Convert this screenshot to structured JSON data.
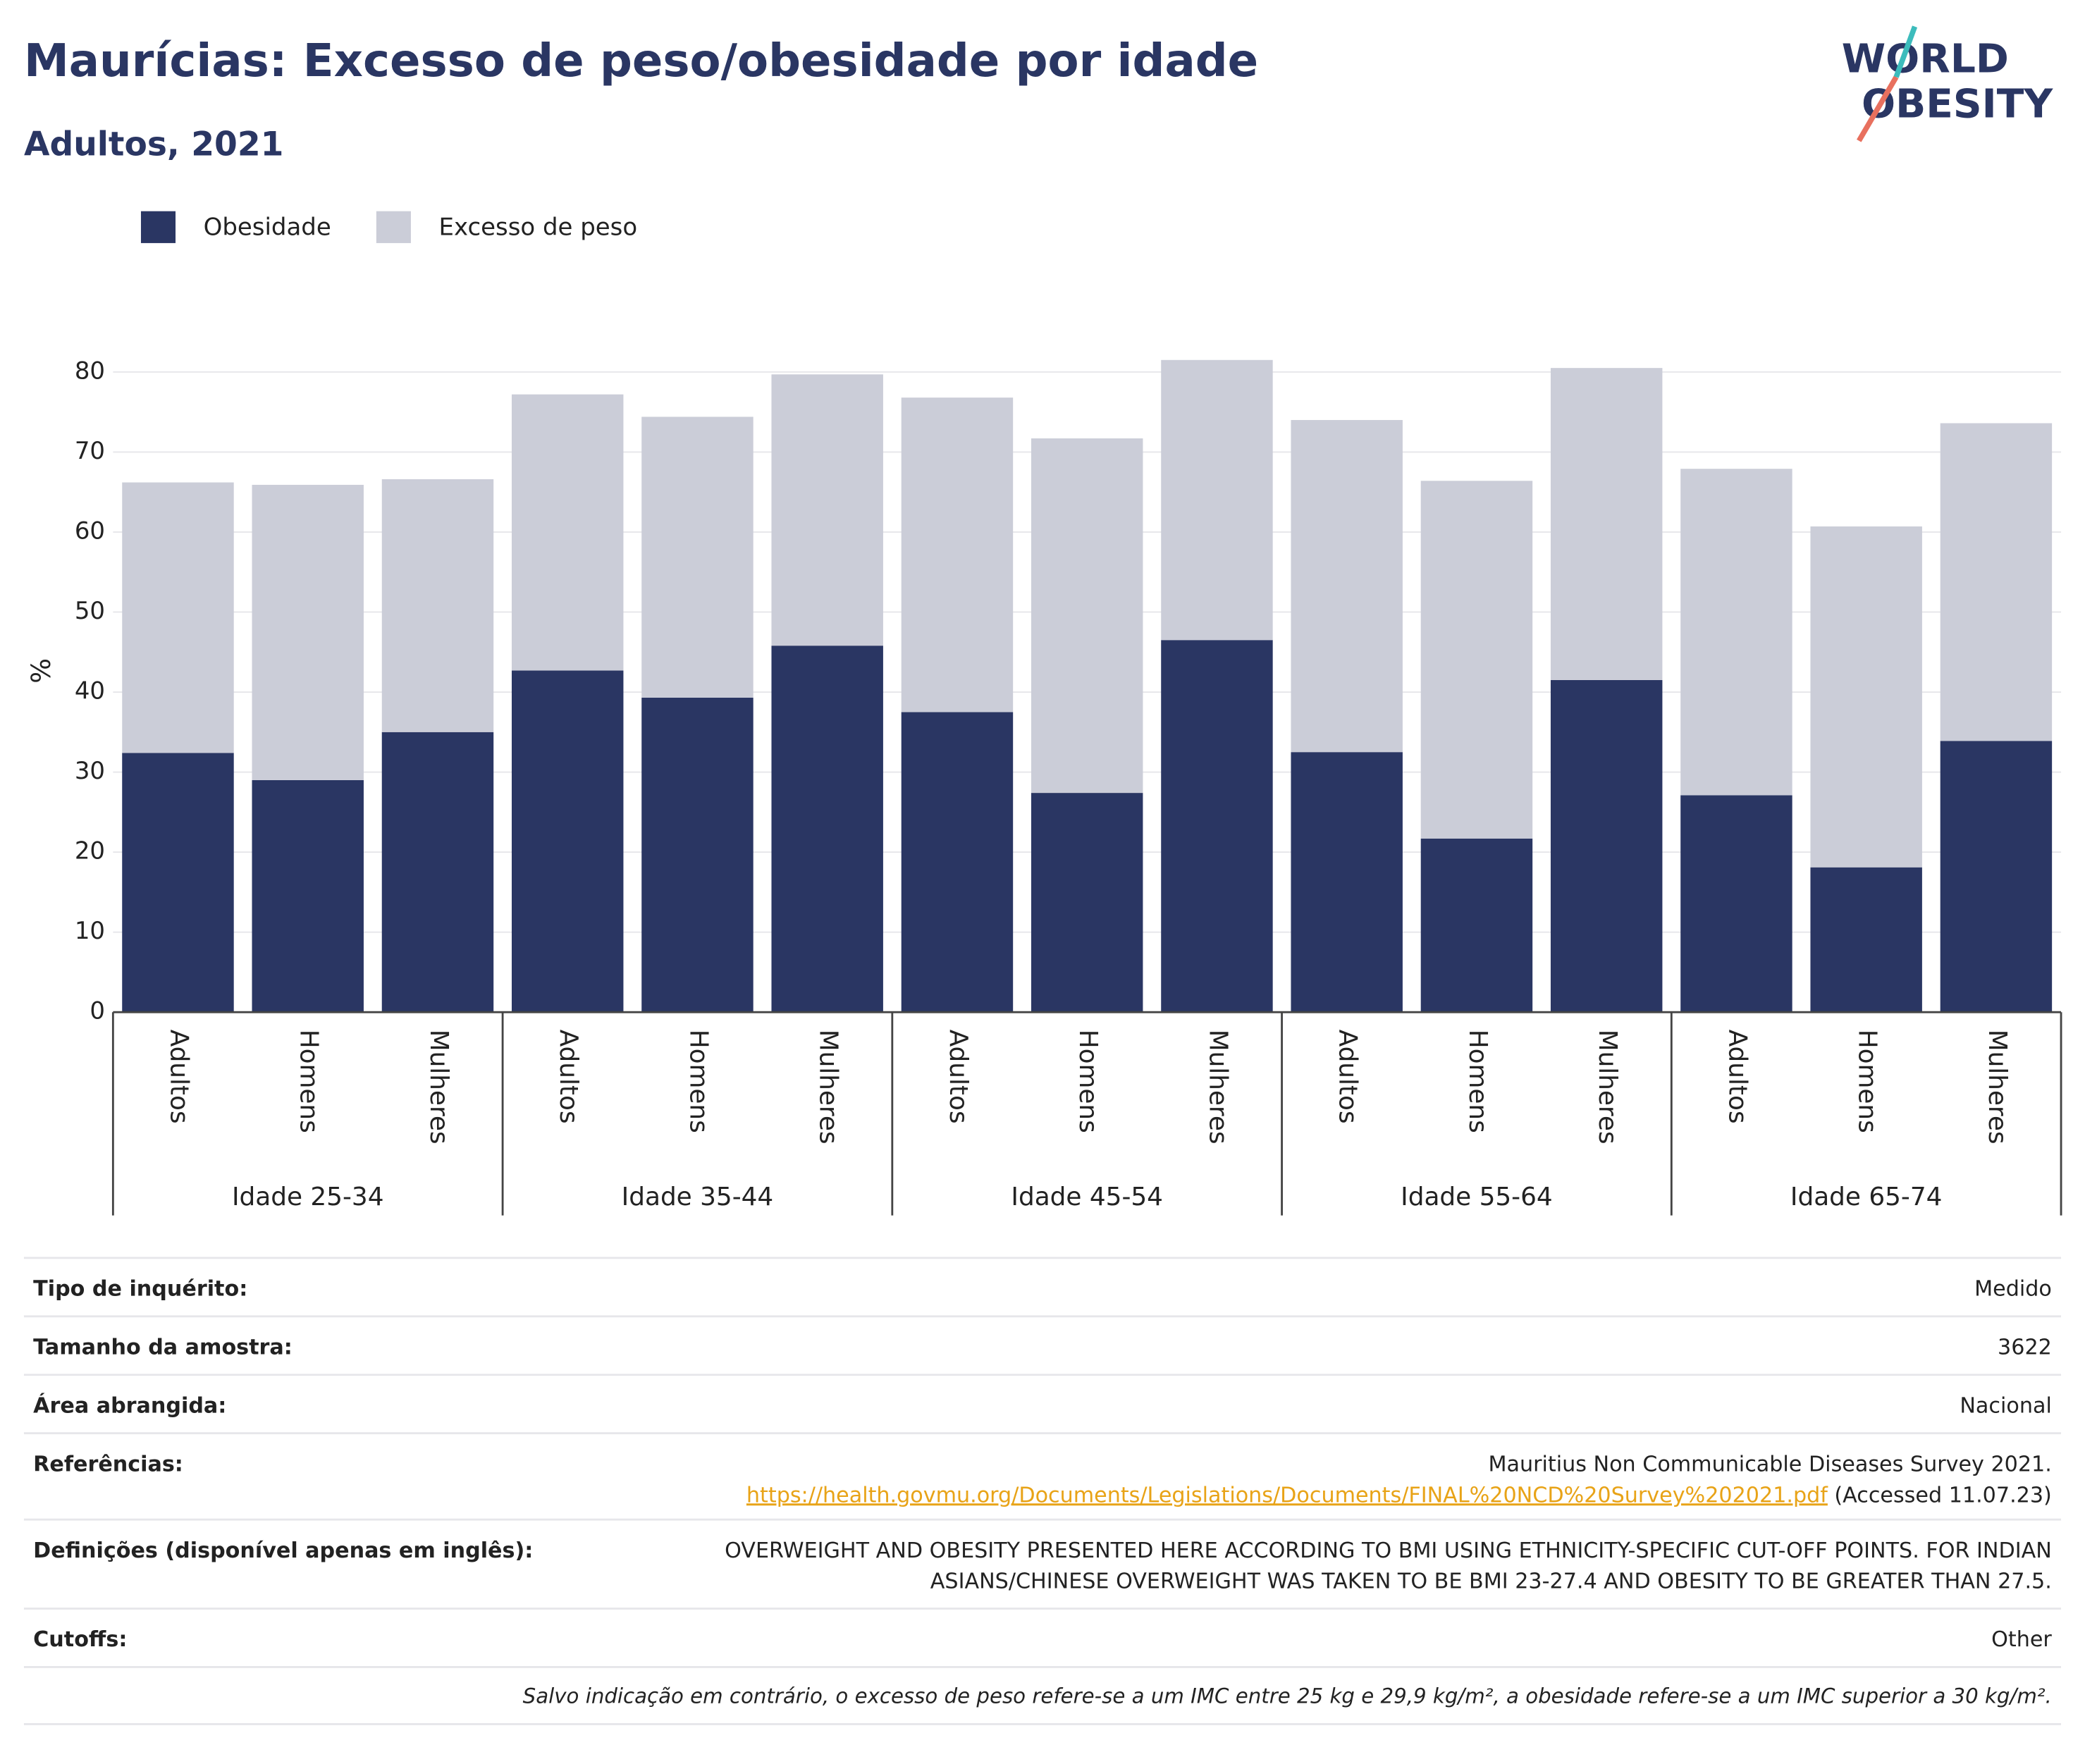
{
  "chart_data": {
    "type": "stacked_bar",
    "title": "Maurícias: Excesso de peso/obesidade por idade",
    "subtitle": "Adultos, 2021",
    "y_label": "%",
    "logo": [
      "WORLD",
      "OBESITY"
    ],
    "groups": [
      {
        "name": "Idade 25-34",
        "categories": [
          "Adultos",
          "Homens",
          "Mulheres"
        ]
      },
      {
        "name": "Idade 35-44",
        "categories": [
          "Adultos",
          "Homens",
          "Mulheres"
        ]
      },
      {
        "name": "Idade 45-54",
        "categories": [
          "Adultos",
          "Homens",
          "Mulheres"
        ]
      },
      {
        "name": "Idade 55-64",
        "categories": [
          "Adultos",
          "Homens",
          "Mulheres"
        ]
      },
      {
        "name": "Idade 65-74",
        "categories": [
          "Adultos",
          "Homens",
          "Mulheres"
        ]
      }
    ],
    "series": [
      {
        "name": "Obesidade",
        "color": "#2a3663",
        "values": [
          32.4,
          29.0,
          35.0,
          42.7,
          39.3,
          45.8,
          37.5,
          27.4,
          46.5,
          32.5,
          21.7,
          41.5,
          27.1,
          18.1,
          33.9
        ]
      },
      {
        "name": "Excesso de peso",
        "color": "#cbcdd8",
        "values": [
          33.8,
          36.9,
          31.6,
          34.5,
          35.1,
          33.9,
          39.3,
          44.3,
          35.0,
          41.5,
          44.7,
          39.0,
          40.8,
          42.6,
          39.7
        ]
      }
    ],
    "ylim": [
      0,
      82
    ],
    "yticks": [
      0,
      10,
      20,
      30,
      40,
      50,
      60,
      70,
      80
    ],
    "grid": true
  },
  "info": {
    "rows": [
      {
        "label": "Tipo de inquérito:",
        "lines": [
          "Medido"
        ]
      },
      {
        "label": "Tamanho da amostra:",
        "lines": [
          "3622"
        ]
      },
      {
        "label": "Área abrangida:",
        "lines": [
          "Nacional"
        ]
      }
    ],
    "references": {
      "label": "Referências:",
      "text": "Mauritius Non Communicable Diseases Survey 2021.",
      "url": "https://health.govmu.org/Documents/Legislations/Documents/FINAL%20NCD%20Survey%202021.pdf",
      "accessed": "(Accessed 11.07.23)"
    },
    "definitions": {
      "label": "Definições (disponível apenas em inglês):",
      "lines": [
        "OVERWEIGHT AND OBESITY PRESENTED HERE ACCORDING TO BMI USING ETHNICITY-SPECIFIC CUT-OFF POINTS. FOR INDIAN",
        "ASIANS/CHINESE OVERWEIGHT WAS TAKEN TO BE BMI 23-27.4 AND OBESITY TO BE GREATER THAN 27.5."
      ]
    },
    "cutoffs": {
      "label": "Cutoffs:",
      "lines": [
        "Other"
      ]
    },
    "footnote": "Salvo indicação em contrário, o excesso de peso refere-se a um IMC entre 25 kg e 29,9 kg/m², a obesidade refere-se a um IMC superior a 30 kg/m²."
  }
}
